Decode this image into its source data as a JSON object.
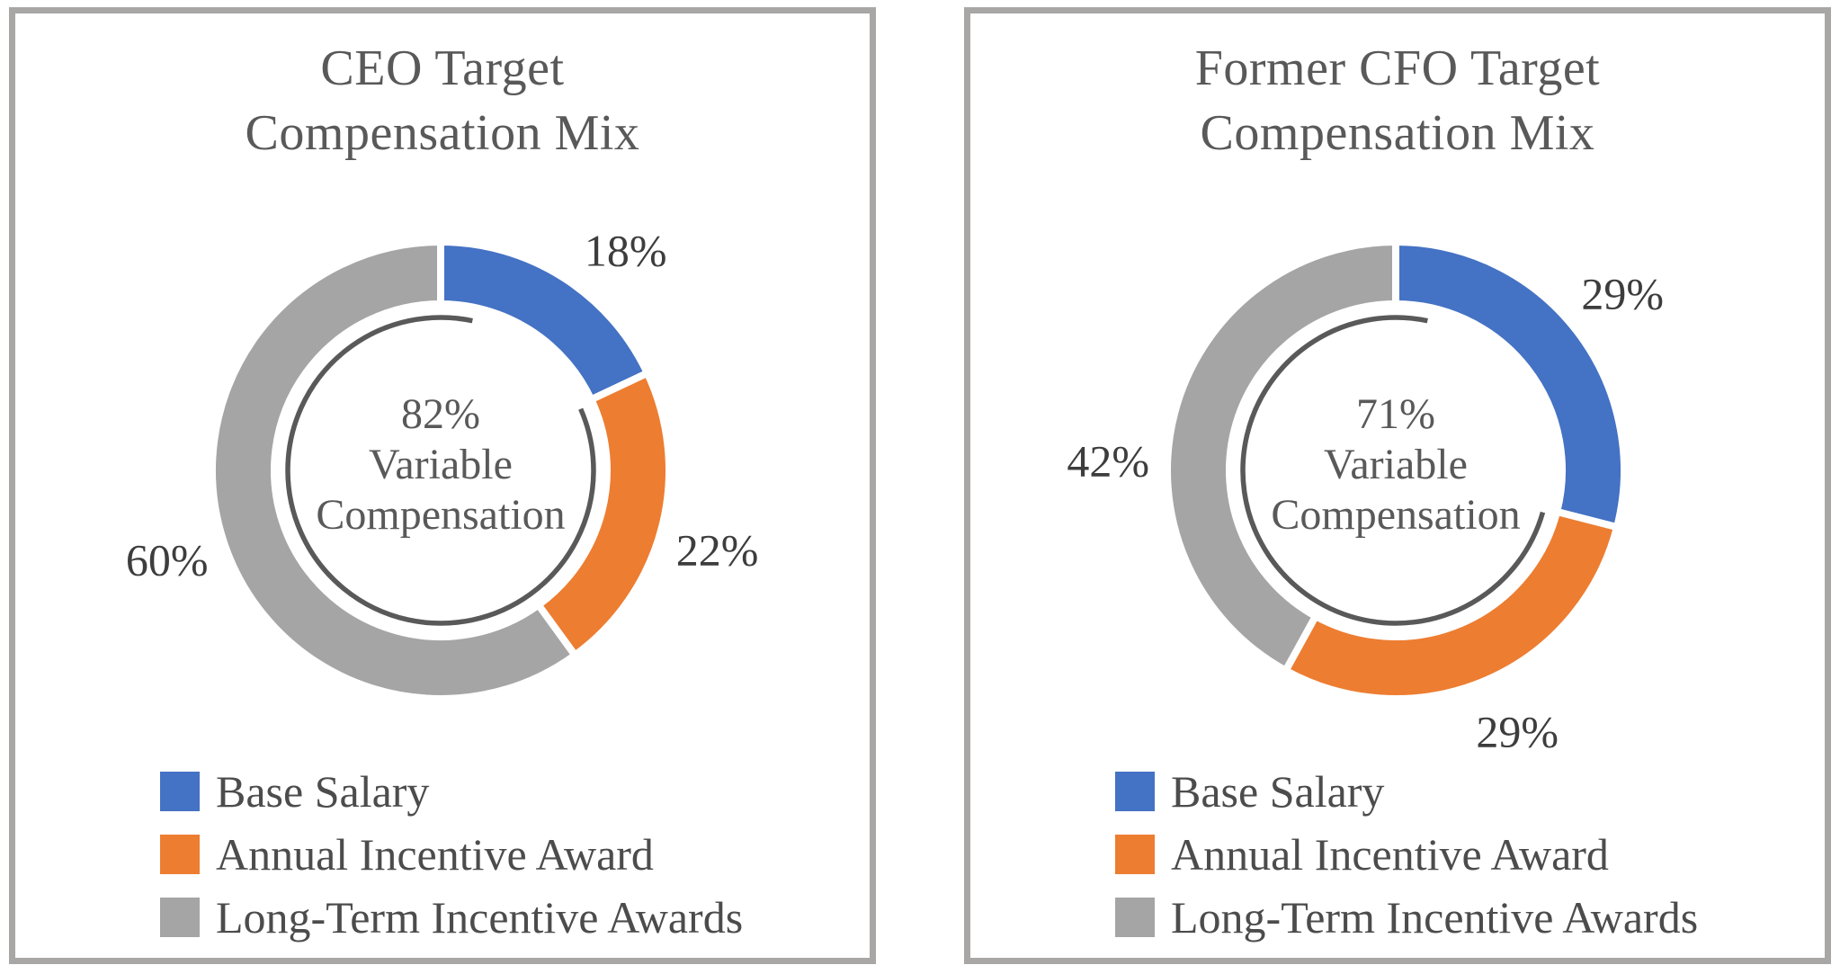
{
  "palette": {
    "base_salary_blue": "#4472C4",
    "annual_incentive_orange": "#ED7D31",
    "long_term_gray": "#A5A5A5",
    "title_text": "#595959",
    "data_label_text": "#3D3D3D",
    "legend_text": "#4C4C4C",
    "inner_arc_stroke": "#595959",
    "panel_border": "#A9A6A6",
    "background": "#FFFFFF"
  },
  "chart_data": [
    {
      "type": "pie",
      "subtype": "donut",
      "title": "CEO Target Compensation Mix",
      "title_lines": [
        "CEO Target",
        "Compensation Mix"
      ],
      "slices": [
        {
          "label": "Base Salary",
          "value": 18,
          "data_label": "18%",
          "color": "#4472C4"
        },
        {
          "label": "Annual Incentive Award",
          "value": 22,
          "data_label": "22%",
          "color": "#ED7D31"
        },
        {
          "label": "Long-Term Incentive Awards",
          "value": 60,
          "data_label": "60%",
          "color": "#A5A5A5"
        }
      ],
      "center_text": {
        "lines": [
          "82%",
          "Variable",
          "Compensation"
        ]
      },
      "variable_compensation_percent": 82,
      "start_angle_deg": 0,
      "direction": "clockwise",
      "data_labels_position": "outside-end",
      "legend_position": "bottom-left"
    },
    {
      "type": "pie",
      "subtype": "donut",
      "title": "Former CFO Target Compensation Mix",
      "title_lines": [
        "Former CFO Target",
        "Compensation Mix"
      ],
      "slices": [
        {
          "label": "Base Salary",
          "value": 29,
          "data_label": "29%",
          "color": "#4472C4"
        },
        {
          "label": "Annual Incentive Award",
          "value": 29,
          "data_label": "29%",
          "color": "#ED7D31"
        },
        {
          "label": "Long-Term Incentive Awards",
          "value": 42,
          "data_label": "42%",
          "color": "#A5A5A5"
        }
      ],
      "center_text": {
        "lines": [
          "71%",
          "Variable",
          "Compensation"
        ]
      },
      "variable_compensation_percent": 71,
      "start_angle_deg": 0,
      "direction": "clockwise",
      "data_labels_position": "outside-end",
      "legend_position": "bottom-left"
    }
  ]
}
